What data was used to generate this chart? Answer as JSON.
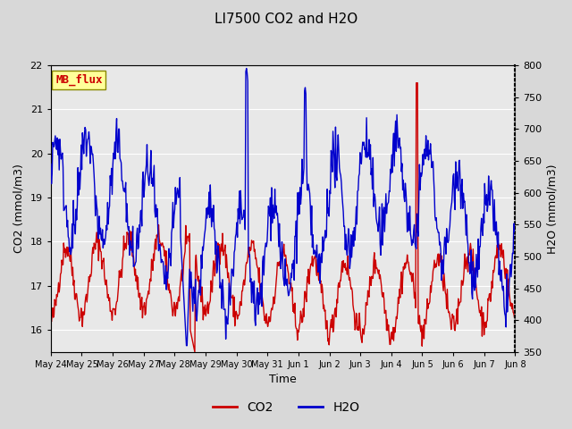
{
  "title": "LI7500 CO2 and H2O",
  "xlabel": "Time",
  "ylabel_left": "CO2 (mmol/m3)",
  "ylabel_right": "H2O (mmol/m3)",
  "ylim_left": [
    15.5,
    22.0
  ],
  "ylim_right": [
    350,
    800
  ],
  "co2_color": "#cc0000",
  "h2o_color": "#0000cc",
  "bg_color": "#e8e8e8",
  "plot_bg_color": "#f0f0f0",
  "annotation_text": "MB_flux",
  "annotation_bg": "#ffff99",
  "annotation_fg": "#cc0000",
  "legend_co2": "CO2",
  "legend_h2o": "H2O",
  "xtick_labels": [
    "May 24",
    "May 25",
    "May 26",
    "May 27",
    "May 28",
    "May 29",
    "May 30",
    "May 31",
    "Jun 1",
    "Jun 2",
    "Jun 3",
    "Jun 4",
    "Jun 5",
    "Jun 6",
    "Jun 7",
    "Jun 8"
  ],
  "num_days": 15,
  "points_per_day": 48
}
